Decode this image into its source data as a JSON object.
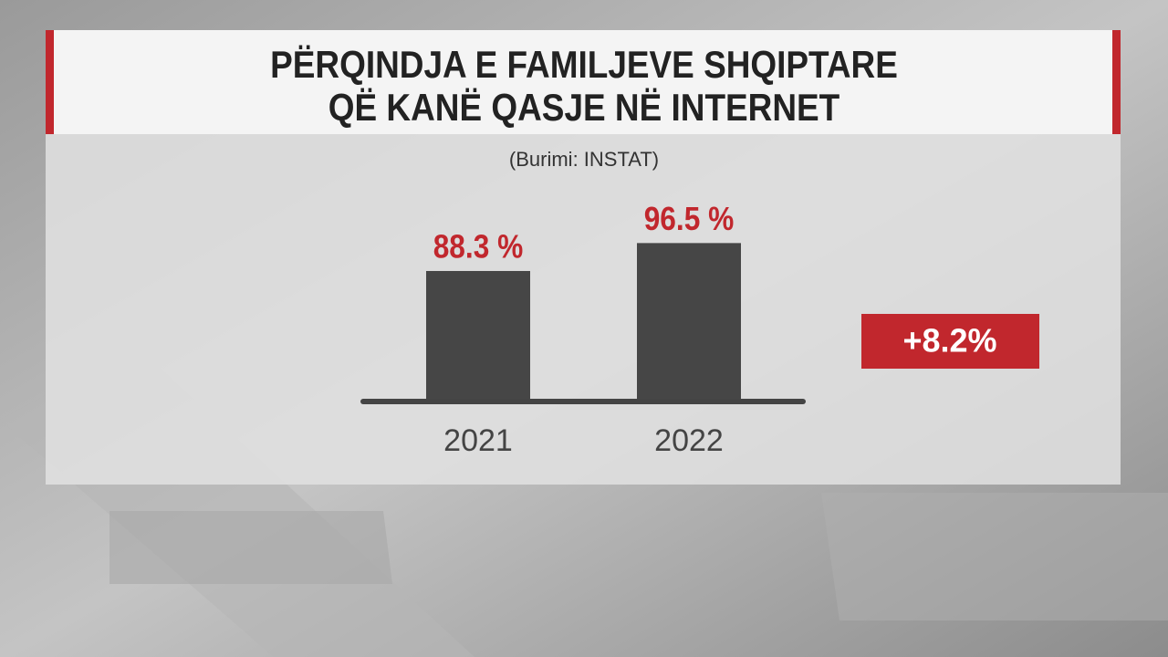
{
  "chart_data": {
    "type": "bar",
    "title": [
      "PËRQINDJA E FAMILJEVE SHQIPTARE",
      "QË KANË QASJE NË INTERNET"
    ],
    "subtitle": "(Burimi: INSTAT)",
    "categories": [
      "2021",
      "2022"
    ],
    "values": [
      88.3,
      96.5
    ],
    "value_labels": [
      "88.3 %",
      "96.5 %"
    ],
    "color": "#464646",
    "label_color": "#c1272d",
    "annotation": "+8.2%",
    "ylim": [
      50,
      100
    ]
  }
}
